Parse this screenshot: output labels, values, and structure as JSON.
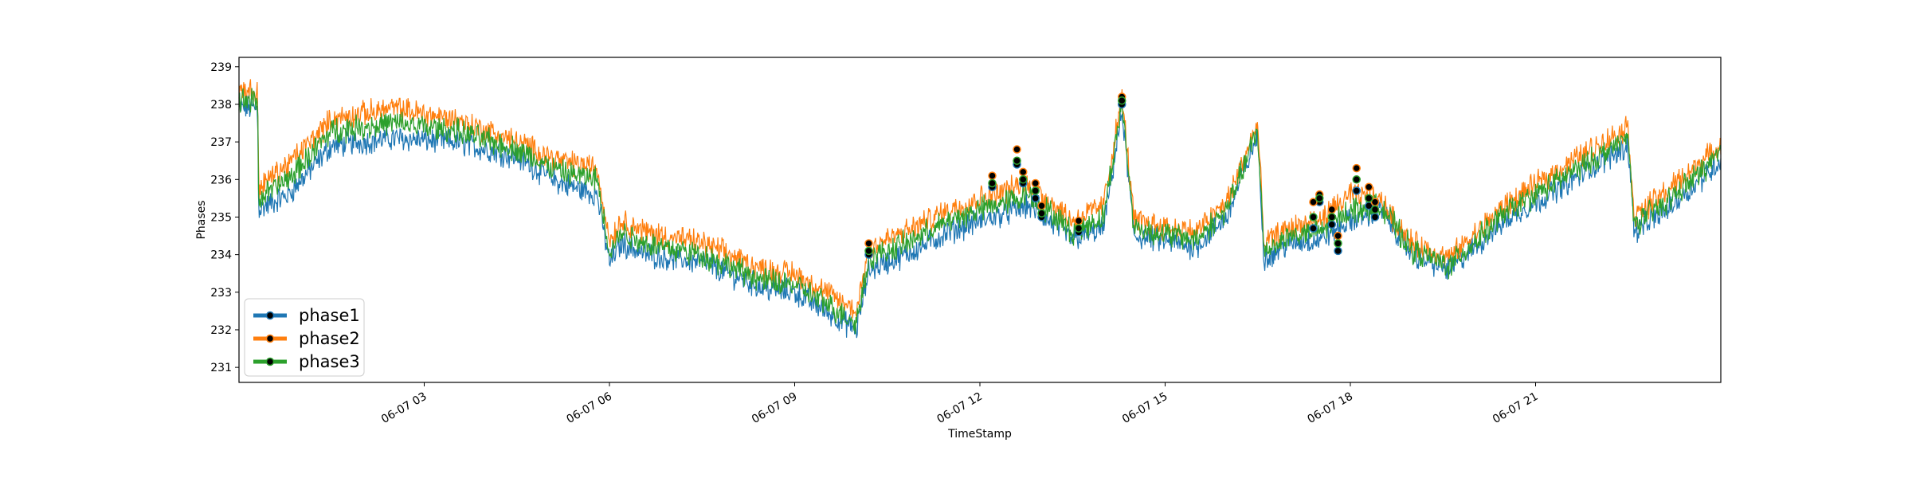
{
  "chart_data": {
    "type": "line",
    "title": "",
    "xlabel": "TimeStamp",
    "ylabel": "Phases",
    "ylim": [
      230.6,
      239.25
    ],
    "xlim_hours": [
      0.0,
      24.0
    ],
    "x_tick_hours": [
      3,
      6,
      9,
      12,
      15,
      18,
      21
    ],
    "x_tick_labels": [
      "06-07 03",
      "06-07 06",
      "06-07 09",
      "06-07 12",
      "06-07 15",
      "06-07 18",
      "06-07 21"
    ],
    "y_ticks": [
      231,
      232,
      233,
      234,
      235,
      236,
      237,
      238,
      239
    ],
    "grid": false,
    "legend_position": "lower-left",
    "series": [
      {
        "name": "phase1",
        "color": "#1f77b4",
        "anchors": [
          [
            0,
            237.9
          ],
          [
            0.3,
            237.9
          ],
          [
            0.32,
            235.2
          ],
          [
            0.8,
            235.6
          ],
          [
            1.5,
            236.9
          ],
          [
            2.5,
            237.1
          ],
          [
            3.5,
            237.0
          ],
          [
            4.5,
            236.6
          ],
          [
            5.2,
            235.9
          ],
          [
            5.8,
            235.6
          ],
          [
            6.0,
            233.8
          ],
          [
            6.2,
            234.3
          ],
          [
            6.6,
            234.0
          ],
          [
            7.5,
            233.8
          ],
          [
            8.5,
            233.1
          ],
          [
            9.0,
            233.0
          ],
          [
            9.5,
            232.5
          ],
          [
            10.0,
            232.0
          ],
          [
            10.2,
            233.6
          ],
          [
            10.8,
            234.0
          ],
          [
            11.5,
            234.6
          ],
          [
            12.0,
            234.9
          ],
          [
            12.8,
            235.3
          ],
          [
            13.5,
            234.4
          ],
          [
            14.0,
            234.7
          ],
          [
            14.3,
            237.8
          ],
          [
            14.5,
            234.5
          ],
          [
            15.5,
            234.2
          ],
          [
            16.0,
            235.0
          ],
          [
            16.5,
            237.2
          ],
          [
            16.6,
            233.9
          ],
          [
            17.0,
            234.3
          ],
          [
            17.5,
            234.4
          ],
          [
            18.0,
            234.9
          ],
          [
            18.5,
            235.2
          ],
          [
            19.0,
            234.0
          ],
          [
            19.6,
            233.6
          ],
          [
            20.5,
            234.9
          ],
          [
            21.5,
            235.9
          ],
          [
            22.0,
            236.4
          ],
          [
            22.5,
            236.9
          ],
          [
            22.6,
            234.6
          ],
          [
            23.2,
            235.3
          ],
          [
            24.0,
            236.5
          ]
        ],
        "markers": [
          [
            10.2,
            234.0
          ],
          [
            12.2,
            235.8
          ],
          [
            12.6,
            236.4
          ],
          [
            12.7,
            235.9
          ],
          [
            12.9,
            235.5
          ],
          [
            13.0,
            235.0
          ],
          [
            13.6,
            234.6
          ],
          [
            14.3,
            238.0
          ],
          [
            17.4,
            234.7
          ],
          [
            17.5,
            235.4
          ],
          [
            17.7,
            234.8
          ],
          [
            17.8,
            234.1
          ],
          [
            18.1,
            235.7
          ],
          [
            18.3,
            235.3
          ],
          [
            18.4,
            235.0
          ]
        ]
      },
      {
        "name": "phase2",
        "color": "#ff7f0e",
        "anchors": [
          [
            0,
            238.4
          ],
          [
            0.3,
            238.3
          ],
          [
            0.32,
            235.8
          ],
          [
            0.8,
            236.4
          ],
          [
            1.5,
            237.6
          ],
          [
            2.5,
            237.9
          ],
          [
            3.5,
            237.6
          ],
          [
            4.5,
            237.0
          ],
          [
            5.2,
            236.5
          ],
          [
            5.8,
            236.3
          ],
          [
            6.0,
            234.4
          ],
          [
            6.2,
            234.9
          ],
          [
            6.6,
            234.6
          ],
          [
            7.5,
            234.3
          ],
          [
            8.5,
            233.6
          ],
          [
            9.0,
            233.5
          ],
          [
            9.5,
            233.0
          ],
          [
            10.0,
            232.5
          ],
          [
            10.2,
            234.2
          ],
          [
            10.8,
            234.6
          ],
          [
            11.5,
            235.2
          ],
          [
            12.0,
            235.5
          ],
          [
            12.8,
            235.9
          ],
          [
            13.5,
            234.9
          ],
          [
            14.0,
            235.3
          ],
          [
            14.3,
            238.2
          ],
          [
            14.5,
            234.9
          ],
          [
            15.5,
            234.6
          ],
          [
            16.0,
            235.4
          ],
          [
            16.5,
            237.5
          ],
          [
            16.6,
            234.3
          ],
          [
            17.0,
            234.7
          ],
          [
            17.5,
            234.9
          ],
          [
            18.0,
            235.6
          ],
          [
            18.5,
            235.4
          ],
          [
            19.0,
            234.3
          ],
          [
            19.6,
            233.9
          ],
          [
            20.5,
            235.3
          ],
          [
            21.5,
            236.4
          ],
          [
            22.0,
            236.9
          ],
          [
            22.5,
            237.4
          ],
          [
            22.6,
            235.0
          ],
          [
            23.2,
            235.8
          ],
          [
            24.0,
            236.9
          ]
        ],
        "markers": [
          [
            10.2,
            234.3
          ],
          [
            12.2,
            236.1
          ],
          [
            12.6,
            236.8
          ],
          [
            12.7,
            236.2
          ],
          [
            12.9,
            235.9
          ],
          [
            13.0,
            235.3
          ],
          [
            13.6,
            234.9
          ],
          [
            14.3,
            238.2
          ],
          [
            17.4,
            235.4
          ],
          [
            17.5,
            235.6
          ],
          [
            17.7,
            235.2
          ],
          [
            17.8,
            234.5
          ],
          [
            18.1,
            236.3
          ],
          [
            18.3,
            235.8
          ],
          [
            18.4,
            235.4
          ]
        ]
      },
      {
        "name": "phase3",
        "color": "#2ca02c",
        "anchors": [
          [
            0,
            238.1
          ],
          [
            0.3,
            238.1
          ],
          [
            0.32,
            235.5
          ],
          [
            0.8,
            236.0
          ],
          [
            1.5,
            237.3
          ],
          [
            2.5,
            237.5
          ],
          [
            3.5,
            237.3
          ],
          [
            4.5,
            236.8
          ],
          [
            5.2,
            236.2
          ],
          [
            5.8,
            236.0
          ],
          [
            6.0,
            234.1
          ],
          [
            6.2,
            234.6
          ],
          [
            6.6,
            234.3
          ],
          [
            7.5,
            234.0
          ],
          [
            8.5,
            233.3
          ],
          [
            9.0,
            233.2
          ],
          [
            9.5,
            232.7
          ],
          [
            10.0,
            232.2
          ],
          [
            10.2,
            233.9
          ],
          [
            10.8,
            234.3
          ],
          [
            11.5,
            234.9
          ],
          [
            12.0,
            235.2
          ],
          [
            12.8,
            235.6
          ],
          [
            13.5,
            234.6
          ],
          [
            14.0,
            235.0
          ],
          [
            14.3,
            238.0
          ],
          [
            14.5,
            234.7
          ],
          [
            15.5,
            234.4
          ],
          [
            16.0,
            235.2
          ],
          [
            16.5,
            237.3
          ],
          [
            16.6,
            234.1
          ],
          [
            17.0,
            234.5
          ],
          [
            17.5,
            234.6
          ],
          [
            18.0,
            235.2
          ],
          [
            18.5,
            235.3
          ],
          [
            19.0,
            234.1
          ],
          [
            19.6,
            233.7
          ],
          [
            20.5,
            235.1
          ],
          [
            21.5,
            236.1
          ],
          [
            22.0,
            236.6
          ],
          [
            22.5,
            237.1
          ],
          [
            22.6,
            234.8
          ],
          [
            23.2,
            235.5
          ],
          [
            24.0,
            236.7
          ]
        ],
        "markers": [
          [
            10.2,
            234.1
          ],
          [
            12.2,
            235.9
          ],
          [
            12.6,
            236.5
          ],
          [
            12.7,
            236.0
          ],
          [
            12.9,
            235.7
          ],
          [
            13.0,
            235.1
          ],
          [
            13.6,
            234.7
          ],
          [
            14.3,
            238.1
          ],
          [
            17.4,
            235.0
          ],
          [
            17.5,
            235.5
          ],
          [
            17.7,
            235.0
          ],
          [
            17.8,
            234.3
          ],
          [
            18.1,
            236.0
          ],
          [
            18.3,
            235.5
          ],
          [
            18.4,
            235.2
          ]
        ]
      }
    ]
  }
}
